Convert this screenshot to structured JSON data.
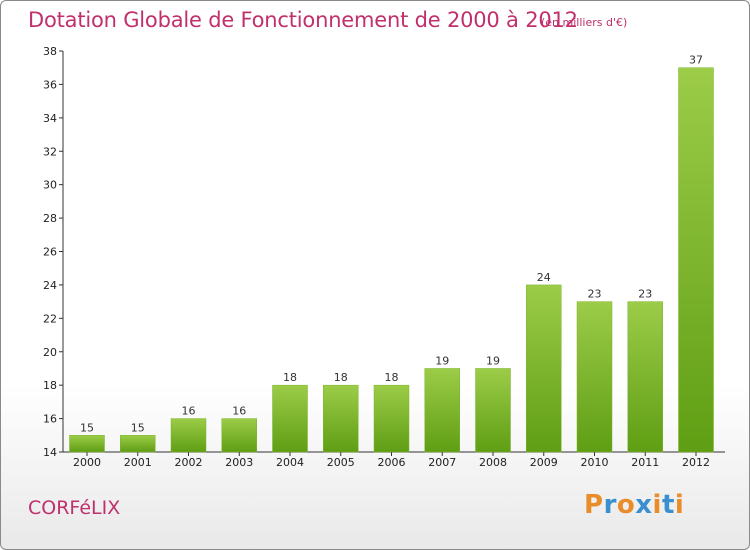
{
  "header": {
    "title": "Dotation Globale de Fonctionnement de 2000 à 2012",
    "subtitle": "(en milliers d'€)"
  },
  "footer": {
    "commune": "CORFéLIX",
    "logo": "Proxiti"
  },
  "colors": {
    "title": "#c0306c",
    "bar_top": "#9ccc48",
    "bar_bottom": "#5f9e14",
    "logo_letters": [
      "#e98d2b",
      "#3a8fcf",
      "#e98d2b",
      "#3a8fcf",
      "#e98d2b",
      "#3a8fcf",
      "#e98d2b"
    ]
  },
  "chart_data": {
    "type": "bar",
    "title": "Dotation Globale de Fonctionnement de 2000 à 2012",
    "subtitle": "(en milliers d'€)",
    "categories": [
      "2000",
      "2001",
      "2002",
      "2003",
      "2004",
      "2005",
      "2006",
      "2007",
      "2008",
      "2009",
      "2010",
      "2011",
      "2012"
    ],
    "values": [
      15,
      15,
      16,
      16,
      18,
      18,
      18,
      19,
      19,
      24,
      23,
      23,
      37
    ],
    "ylim": [
      14,
      38
    ],
    "yticks": [
      14,
      16,
      18,
      20,
      22,
      24,
      26,
      28,
      30,
      32,
      34,
      36,
      38
    ],
    "grid": false,
    "legend": "none"
  }
}
